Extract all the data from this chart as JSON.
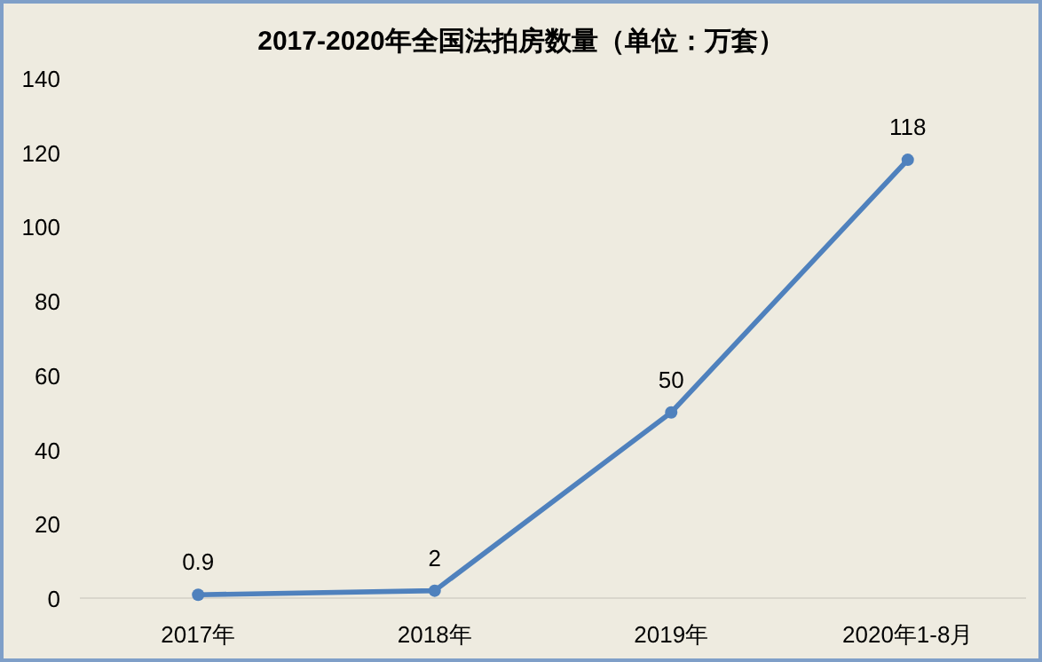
{
  "chart_data": {
    "type": "line",
    "title": "2017-2020年全国法拍房数量（单位：万套）",
    "categories": [
      "2017年",
      "2018年",
      "2019年",
      "2020年1-8月"
    ],
    "series": [
      {
        "color": "#4f81bd",
        "values": [
          0.9,
          2,
          50,
          118
        ]
      }
    ],
    "ylim": [
      0,
      140
    ],
    "yticks": [
      0,
      20,
      40,
      60,
      80,
      100,
      120,
      140
    ],
    "data_labels": true,
    "marker": "circle"
  }
}
